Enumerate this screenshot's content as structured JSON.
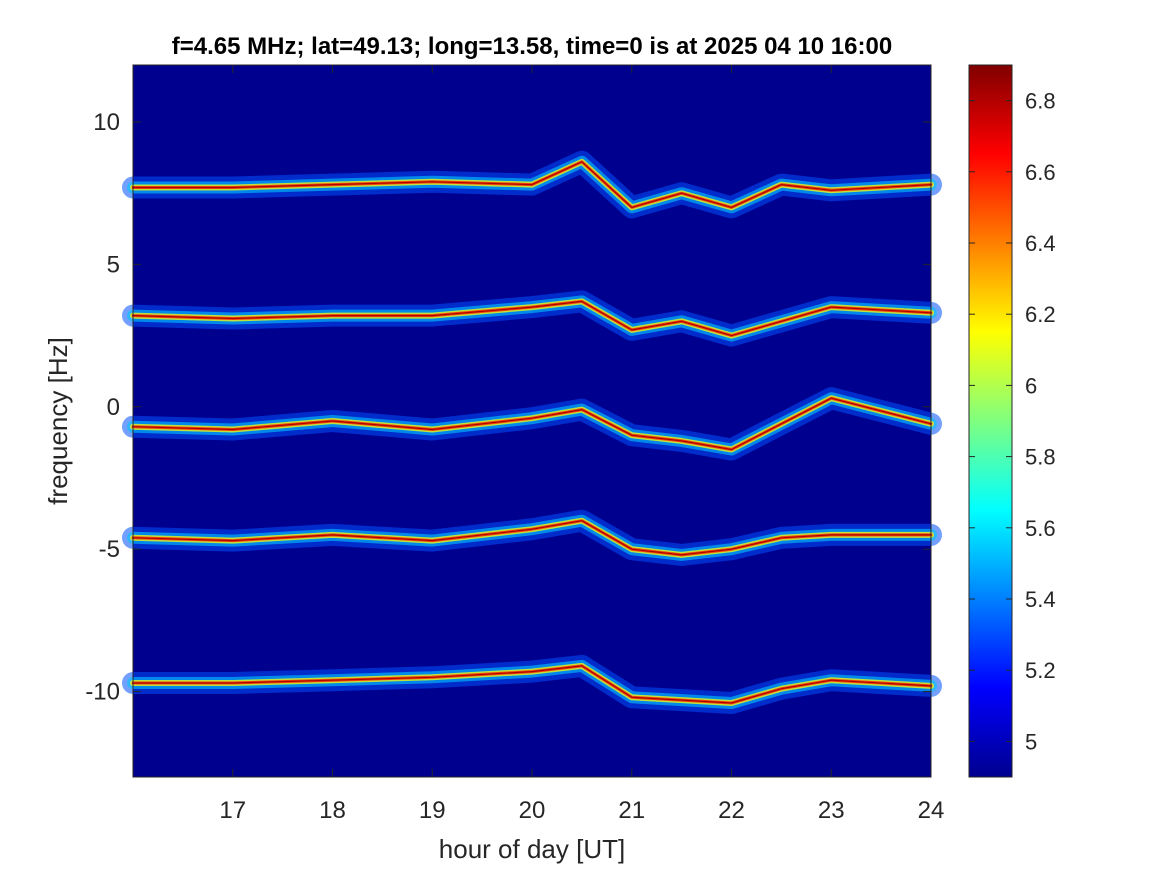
{
  "chart_data": {
    "type": "heatmap",
    "title": "f=4.65 MHz;  lat=49.13; long=13.58, time=0 is at 2025 04 10 16:00",
    "xlabel": "hour of day [UT]",
    "ylabel": "frequency [Hz]",
    "xlim": [
      16,
      24
    ],
    "ylim": [
      -13,
      12
    ],
    "xticks": [
      17,
      18,
      19,
      20,
      21,
      22,
      23,
      24
    ],
    "yticks": [
      10,
      5,
      0,
      -5,
      -10
    ],
    "grid": false,
    "colormap": "jet",
    "colorbar": {
      "clim": [
        4.9,
        6.9
      ],
      "ticks": [
        6.8,
        6.6,
        6.4,
        6.2,
        6,
        5.8,
        5.6,
        5.4,
        5.2,
        5
      ]
    },
    "background_level": 4.9,
    "traces": [
      {
        "points": [
          [
            16.0,
            7.7
          ],
          [
            17.0,
            7.7
          ],
          [
            18.0,
            7.8
          ],
          [
            19.0,
            7.9
          ],
          [
            20.0,
            7.8
          ],
          [
            20.5,
            8.6
          ],
          [
            21.0,
            7.0
          ],
          [
            21.5,
            7.5
          ],
          [
            22.0,
            7.0
          ],
          [
            22.5,
            7.8
          ],
          [
            23.0,
            7.6
          ],
          [
            24.0,
            7.8
          ]
        ]
      },
      {
        "points": [
          [
            16.0,
            3.2
          ],
          [
            17.0,
            3.1
          ],
          [
            18.0,
            3.2
          ],
          [
            19.0,
            3.2
          ],
          [
            20.0,
            3.5
          ],
          [
            20.5,
            3.7
          ],
          [
            21.0,
            2.7
          ],
          [
            21.5,
            3.0
          ],
          [
            22.0,
            2.5
          ],
          [
            22.5,
            3.0
          ],
          [
            23.0,
            3.5
          ],
          [
            24.0,
            3.3
          ]
        ]
      },
      {
        "points": [
          [
            16.0,
            -0.7
          ],
          [
            17.0,
            -0.8
          ],
          [
            18.0,
            -0.5
          ],
          [
            19.0,
            -0.8
          ],
          [
            20.0,
            -0.4
          ],
          [
            20.5,
            -0.1
          ],
          [
            21.0,
            -1.0
          ],
          [
            21.5,
            -1.2
          ],
          [
            22.0,
            -1.5
          ],
          [
            22.5,
            -0.6
          ],
          [
            23.0,
            0.3
          ],
          [
            24.0,
            -0.6
          ]
        ]
      },
      {
        "points": [
          [
            16.0,
            -4.6
          ],
          [
            17.0,
            -4.7
          ],
          [
            18.0,
            -4.5
          ],
          [
            19.0,
            -4.7
          ],
          [
            20.0,
            -4.3
          ],
          [
            20.5,
            -4.0
          ],
          [
            21.0,
            -5.0
          ],
          [
            21.5,
            -5.2
          ],
          [
            22.0,
            -5.0
          ],
          [
            22.5,
            -4.6
          ],
          [
            23.0,
            -4.5
          ],
          [
            24.0,
            -4.5
          ]
        ]
      },
      {
        "points": [
          [
            16.0,
            -9.7
          ],
          [
            17.0,
            -9.7
          ],
          [
            18.0,
            -9.6
          ],
          [
            19.0,
            -9.5
          ],
          [
            20.0,
            -9.3
          ],
          [
            20.5,
            -9.1
          ],
          [
            21.0,
            -10.2
          ],
          [
            21.5,
            -10.3
          ],
          [
            22.0,
            -10.4
          ],
          [
            22.5,
            -9.9
          ],
          [
            23.0,
            -9.6
          ],
          [
            24.0,
            -9.8
          ]
        ]
      }
    ]
  }
}
